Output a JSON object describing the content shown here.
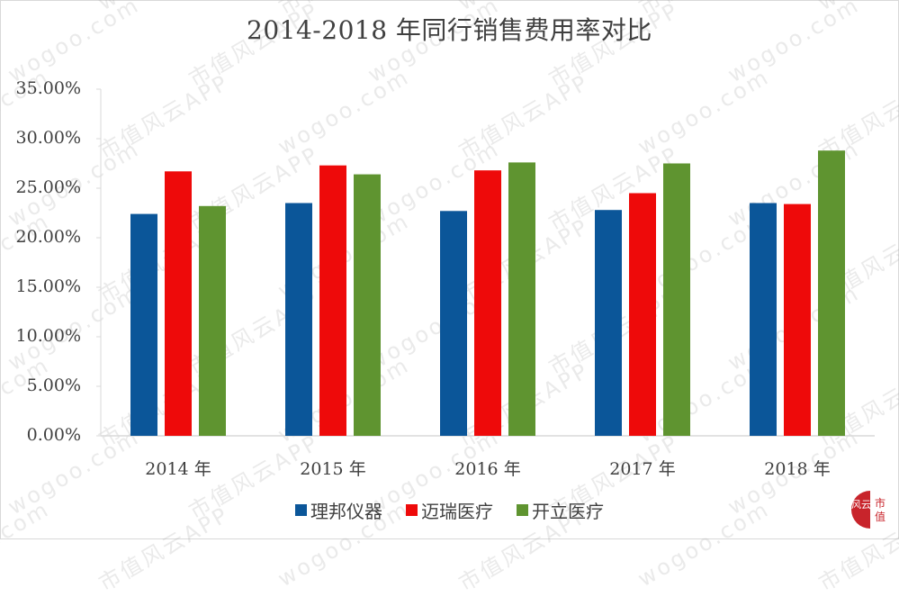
{
  "title": "2014-2018 年同行销售费用率对比",
  "colors": {
    "lbyq": "#0B5699",
    "mindray": "#EE0A0A",
    "sonoscape": "#5F9430",
    "axis": "#d9d9d9",
    "text": "#404040",
    "logo": "#C8242B"
  },
  "y_ticks": [
    "35.00%",
    "30.00%",
    "25.00%",
    "20.00%",
    "15.00%",
    "10.00%",
    "5.00%",
    "0.00%"
  ],
  "x_labels": [
    "2014 年",
    "2015 年",
    "2016 年",
    "2017 年",
    "2018 年"
  ],
  "legend": [
    {
      "label": "理邦仪器",
      "color": "#0B5699"
    },
    {
      "label": "迈瑞医疗",
      "color": "#EE0A0A"
    },
    {
      "label": "开立医疗",
      "color": "#5F9430"
    }
  ],
  "watermark": {
    "text_a": "wogoo.com",
    "text_b": "市值风云APP"
  },
  "logo": {
    "left_text": "风云",
    "right_text": "市值"
  },
  "chart_data": {
    "type": "bar",
    "title": "2014-2018 年同行销售费用率对比",
    "xlabel": "",
    "ylabel": "",
    "categories": [
      "2014 年",
      "2015 年",
      "2016 年",
      "2017 年",
      "2018 年"
    ],
    "series": [
      {
        "name": "理邦仪器",
        "values": [
          22.4,
          23.5,
          22.7,
          22.8,
          23.5
        ]
      },
      {
        "name": "迈瑞医疗",
        "values": [
          26.7,
          27.3,
          26.8,
          24.5,
          23.4
        ]
      },
      {
        "name": "开立医疗",
        "values": [
          23.2,
          26.4,
          27.6,
          27.5,
          28.8
        ]
      }
    ],
    "ylim": [
      0,
      35
    ],
    "y_tick_step": 5,
    "y_format": "percent_2dp",
    "grid": false,
    "legend_position": "bottom"
  }
}
